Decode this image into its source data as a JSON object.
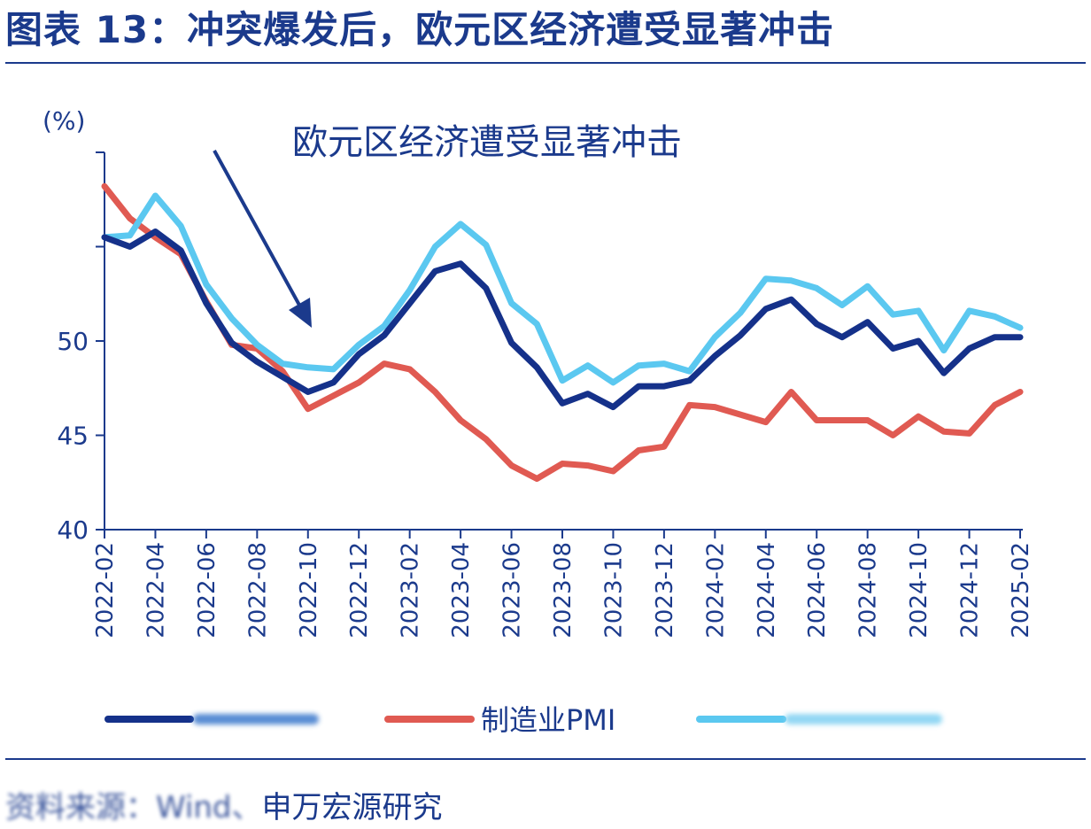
{
  "header": {
    "title": "图表 13：冲突爆发后，欧元区经济遭受显著冲击"
  },
  "footer": {
    "source_blurred": "资料来源：Wind、",
    "source_clear": "申万宏源研究"
  },
  "colors": {
    "navy": "#1b3a8c",
    "composite": "#15318a",
    "manufacturing": "#e05a52",
    "services": "#5bc8f0"
  },
  "chart_data": {
    "type": "line",
    "unit_label": "(%)",
    "annotation": "欧元区经济遭受显著冲击",
    "ylim": [
      40,
      60
    ],
    "yticks": [
      40,
      45,
      50
    ],
    "x": [
      "2022-02",
      "2022-03",
      "2022-04",
      "2022-05",
      "2022-06",
      "2022-07",
      "2022-08",
      "2022-09",
      "2022-10",
      "2022-11",
      "2022-12",
      "2023-01",
      "2023-02",
      "2023-03",
      "2023-04",
      "2023-05",
      "2023-06",
      "2023-07",
      "2023-08",
      "2023-09",
      "2023-10",
      "2023-11",
      "2023-12",
      "2024-01",
      "2024-02",
      "2024-03",
      "2024-04",
      "2024-05",
      "2024-06",
      "2024-07",
      "2024-08",
      "2024-09",
      "2024-10",
      "2024-11",
      "2024-12",
      "2025-01",
      "2025-02"
    ],
    "xtick_labels": [
      "2022-02",
      "2022-04",
      "2022-06",
      "2022-08",
      "2022-10",
      "2022-12",
      "2023-02",
      "2023-04",
      "2023-06",
      "2023-08",
      "2023-10",
      "2023-12",
      "2024-02",
      "2024-04",
      "2024-06",
      "2024-08",
      "2024-10",
      "2024-12",
      "2025-02"
    ],
    "series": [
      {
        "key": "composite",
        "values": [
          55.5,
          55.0,
          55.8,
          54.8,
          52.0,
          49.9,
          48.9,
          48.1,
          47.3,
          47.8,
          49.3,
          50.3,
          52.0,
          53.7,
          54.1,
          52.8,
          49.9,
          48.6,
          46.7,
          47.2,
          46.5,
          47.6,
          47.6,
          47.9,
          49.2,
          50.3,
          51.7,
          52.2,
          50.9,
          50.2,
          51.0,
          49.6,
          50.0,
          48.3,
          49.6,
          50.2,
          50.2
        ]
      },
      {
        "key": "manufacturing",
        "name": "制造业PMI",
        "values": [
          58.2,
          56.5,
          55.5,
          54.6,
          52.1,
          49.8,
          49.6,
          48.4,
          46.4,
          47.1,
          47.8,
          48.8,
          48.5,
          47.3,
          45.8,
          44.8,
          43.4,
          42.7,
          43.5,
          43.4,
          43.1,
          44.2,
          44.4,
          46.6,
          46.5,
          46.1,
          45.7,
          47.3,
          45.8,
          45.8,
          45.8,
          45.0,
          46.0,
          45.2,
          45.1,
          46.6,
          47.3
        ]
      },
      {
        "key": "services",
        "values": [
          55.5,
          55.6,
          57.7,
          56.1,
          53.0,
          51.2,
          49.8,
          48.8,
          48.6,
          48.5,
          49.8,
          50.8,
          52.7,
          55.0,
          56.2,
          55.1,
          52.0,
          50.9,
          47.9,
          48.7,
          47.8,
          48.7,
          48.8,
          48.4,
          50.2,
          51.5,
          53.3,
          53.2,
          52.8,
          51.9,
          52.9,
          51.4,
          51.6,
          49.5,
          51.6,
          51.3,
          50.7
        ]
      }
    ]
  }
}
